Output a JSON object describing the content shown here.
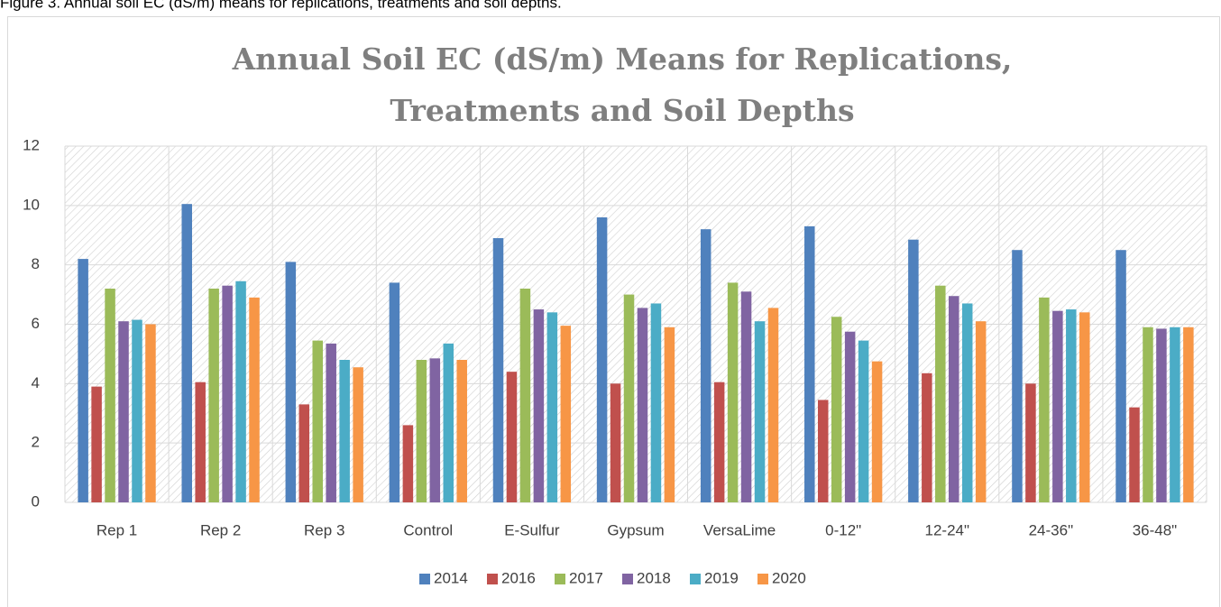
{
  "caption": "Figure 3. Annual soil EC (dS/m) means for replications, treatments and soil depths.",
  "chart_data": {
    "type": "bar",
    "title": [
      "Annual Soil EC (dS/m) Means for Replications,",
      "Treatments and Soil Depths"
    ],
    "categories": [
      "Rep 1",
      "Rep 2",
      "Rep 3",
      "Control",
      "E-Sulfur",
      "Gypsum",
      "VersaLime",
      "0-12\"",
      "12-24\"",
      "24-36\"",
      "36-48\""
    ],
    "series": [
      {
        "name": "2014",
        "color": "#4f81bd",
        "values": [
          8.2,
          10.05,
          8.1,
          7.4,
          8.9,
          9.6,
          9.2,
          9.3,
          8.85,
          8.5,
          8.5
        ]
      },
      {
        "name": "2016",
        "color": "#c0504d",
        "values": [
          3.9,
          4.05,
          3.3,
          2.6,
          4.4,
          4.0,
          4.05,
          3.45,
          4.35,
          4.0,
          3.2
        ]
      },
      {
        "name": "2017",
        "color": "#9bbb59",
        "values": [
          7.2,
          7.2,
          5.45,
          4.8,
          7.2,
          7.0,
          7.4,
          6.25,
          7.3,
          6.9,
          5.9
        ]
      },
      {
        "name": "2018",
        "color": "#8064a2",
        "values": [
          6.1,
          7.3,
          5.35,
          4.85,
          6.5,
          6.55,
          7.1,
          5.75,
          6.95,
          6.45,
          5.85
        ]
      },
      {
        "name": "2019",
        "color": "#4bacc6",
        "values": [
          6.15,
          7.45,
          4.8,
          5.35,
          6.4,
          6.7,
          6.1,
          5.45,
          6.7,
          6.5,
          5.9
        ]
      },
      {
        "name": "2020",
        "color": "#f79646",
        "values": [
          6.0,
          6.9,
          4.55,
          4.8,
          5.95,
          5.9,
          6.55,
          4.75,
          6.1,
          6.4,
          5.9
        ]
      }
    ],
    "ylim": [
      0,
      12
    ],
    "yticks": [
      0,
      2,
      4,
      6,
      8,
      10,
      12
    ],
    "grid": true,
    "legend": "bottom"
  }
}
